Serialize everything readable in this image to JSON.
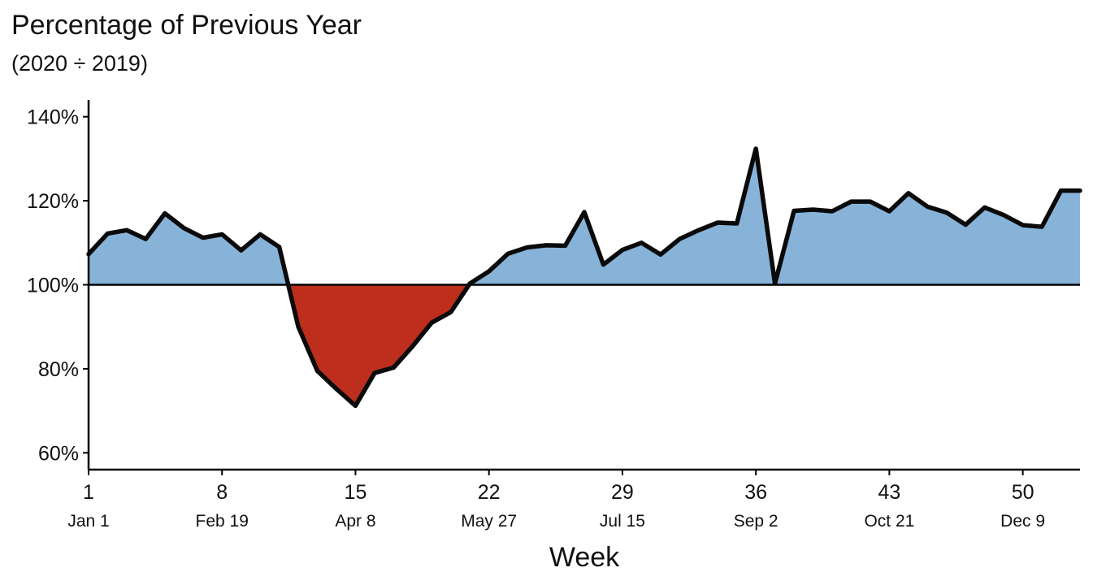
{
  "chart_data": {
    "type": "area",
    "title": "Percentage of Previous Year",
    "subtitle": "(2020 ÷ 2019)",
    "xlabel": "Week",
    "ylabel": "",
    "xlim": [
      1,
      53
    ],
    "ylim": [
      56,
      144
    ],
    "baseline": 100,
    "y_ticks": [
      60,
      80,
      100,
      120,
      140
    ],
    "y_tick_labels": [
      "60%",
      "80%",
      "100%",
      "120%",
      "140%"
    ],
    "x_ticks": [
      {
        "week": 1,
        "week_label": "1",
        "date_label": "Jan 1"
      },
      {
        "week": 8,
        "week_label": "8",
        "date_label": "Feb 19"
      },
      {
        "week": 15,
        "week_label": "15",
        "date_label": "Apr 8"
      },
      {
        "week": 22,
        "week_label": "22",
        "date_label": "May 27"
      },
      {
        "week": 29,
        "week_label": "29",
        "date_label": "Jul 15"
      },
      {
        "week": 36,
        "week_label": "36",
        "date_label": "Sep 2"
      },
      {
        "week": 43,
        "week_label": "43",
        "date_label": "Oct 21"
      },
      {
        "week": 50,
        "week_label": "50",
        "date_label": "Dec 9"
      }
    ],
    "x": [
      1,
      2,
      3,
      4,
      5,
      6,
      7,
      8,
      9,
      10,
      11,
      12,
      13,
      14,
      15,
      16,
      17,
      18,
      19,
      20,
      21,
      22,
      23,
      24,
      25,
      26,
      27,
      28,
      29,
      30,
      31,
      32,
      33,
      34,
      35,
      36,
      37,
      38,
      39,
      40,
      41,
      42,
      43,
      44,
      45,
      46,
      47,
      48,
      49,
      50,
      51,
      52,
      53
    ],
    "values": [
      107.3,
      112.2,
      113.0,
      110.9,
      117.0,
      113.5,
      111.2,
      112.0,
      108.2,
      112.0,
      109.0,
      90.0,
      79.5,
      75.2,
      71.2,
      79.0,
      80.3,
      85.4,
      91.0,
      93.5,
      100.3,
      103.2,
      107.4,
      108.9,
      109.4,
      109.3,
      117.3,
      104.8,
      108.3,
      110.0,
      107.2,
      110.9,
      113.0,
      114.8,
      114.6,
      132.4,
      100.3,
      117.6,
      117.9,
      117.5,
      119.8,
      119.8,
      117.5,
      121.8,
      118.6,
      117.2,
      114.3,
      118.4,
      116.6,
      114.2,
      113.8,
      122.4,
      122.4
    ],
    "above_color": "#88b3d8",
    "below_color": "#bd2f1c",
    "line_color": "#0a0a0a"
  }
}
